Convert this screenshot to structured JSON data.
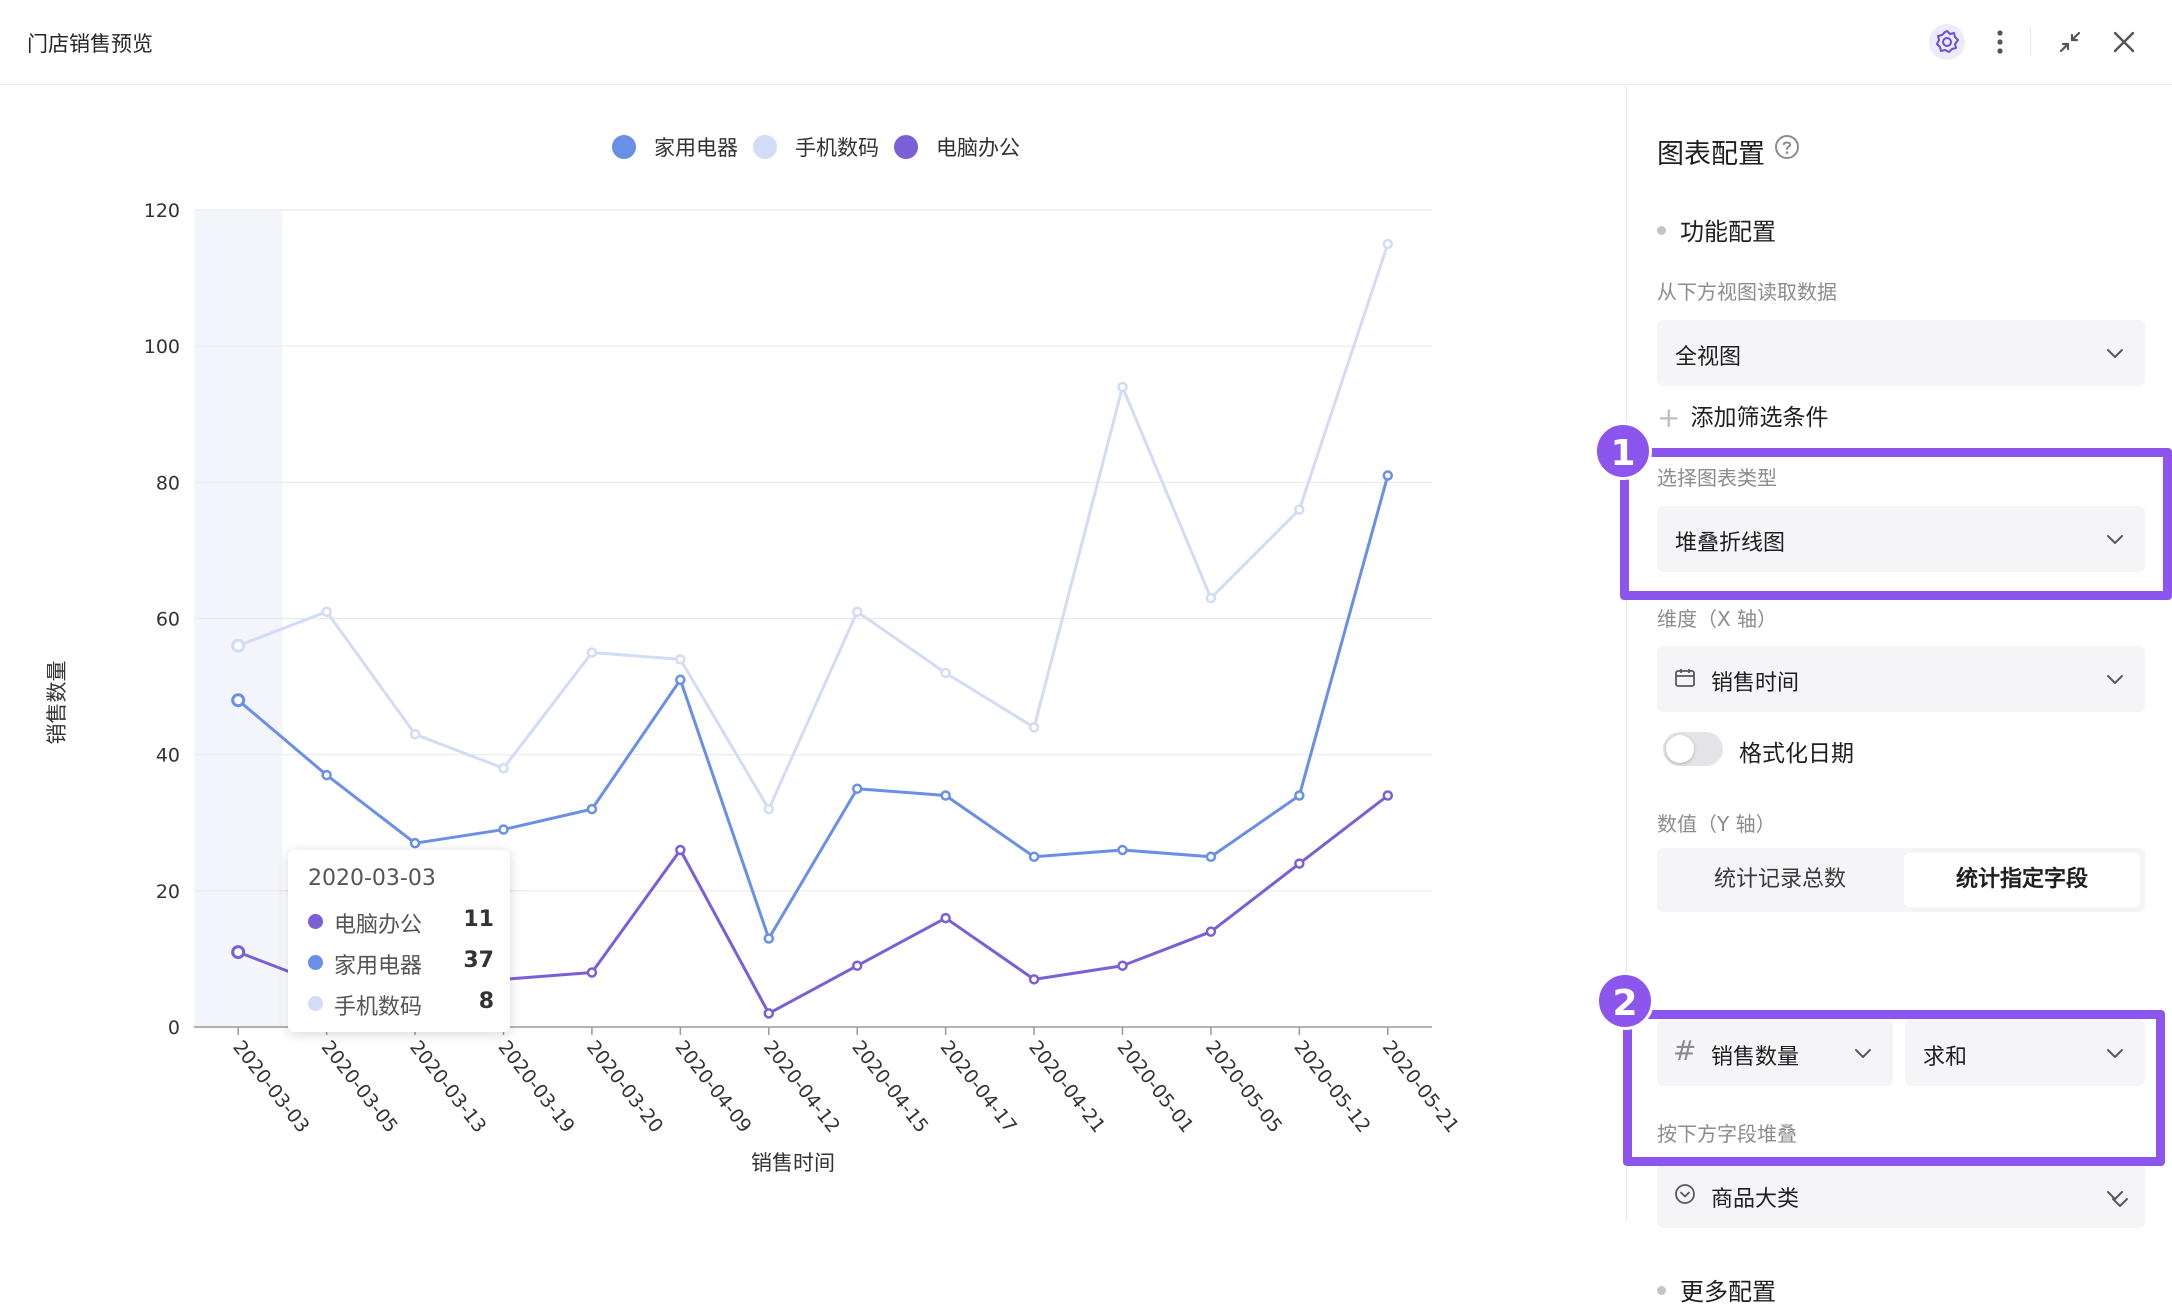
{
  "header": {
    "title": "门店销售预览",
    "icons": [
      "gear-icon",
      "more-vertical-icon",
      "collapse-icon",
      "close-icon"
    ]
  },
  "colors": {
    "accent": "#8b55ee",
    "series_appliance": "#6a8fe6",
    "series_mobile": "#d2dcf6",
    "series_computer": "#7b5fd6"
  },
  "chart_data": {
    "type": "line",
    "stacked": true,
    "legend": [
      "家用电器",
      "手机数码",
      "电脑办公"
    ],
    "legend_position": "top-center",
    "categories": [
      "2020-03-03",
      "2020-03-05",
      "2020-03-13",
      "2020-03-19",
      "2020-03-20",
      "2020-04-09",
      "2020-04-12",
      "2020-04-15",
      "2020-04-17",
      "2020-04-21",
      "2020-05-01",
      "2020-05-05",
      "2020-05-12",
      "2020-05-21"
    ],
    "series": [
      {
        "name": "电脑办公",
        "values": [
          11,
          6,
          14,
          7,
          8,
          26,
          2,
          9,
          16,
          7,
          9,
          14,
          24,
          34
        ]
      },
      {
        "name": "家用电器",
        "values": [
          48,
          37,
          27,
          29,
          32,
          51,
          13,
          35,
          34,
          25,
          26,
          25,
          34,
          81
        ]
      },
      {
        "name": "手机数码",
        "values": [
          56,
          61,
          43,
          38,
          55,
          54,
          32,
          61,
          52,
          44,
          94,
          63,
          76,
          115
        ]
      }
    ],
    "xlabel": "销售时间",
    "ylabel": "销售数量",
    "ylim": [
      0,
      120
    ],
    "yticks": [
      0,
      20,
      40,
      60,
      80,
      100,
      120
    ],
    "grid": true,
    "tooltip": {
      "date": "2020-03-03",
      "rows": [
        {
          "name": "电脑办公",
          "value": "11"
        },
        {
          "name": "家用电器",
          "value": "37"
        },
        {
          "name": "手机数码",
          "value": "8"
        }
      ]
    }
  },
  "panel": {
    "title": "图表配置",
    "function_config": "功能配置",
    "read_from_label": "从下方视图读取数据",
    "view_select": "全视图",
    "add_filter": "添加筛选条件",
    "chart_type_label": "选择图表类型",
    "chart_type_value": "堆叠折线图",
    "dimension_label": "维度（X 轴）",
    "dimension_value": "销售时间",
    "format_date_label": "格式化日期",
    "value_label": "数值（Y 轴）",
    "count_records": "统计记录总数",
    "count_field": "统计指定字段",
    "field_value": "销售数量",
    "agg_value": "求和",
    "stack_by_label": "按下方字段堆叠",
    "stack_by_value": "商品大类",
    "more_config": "更多配置",
    "badge_1": "1",
    "badge_2": "2"
  }
}
